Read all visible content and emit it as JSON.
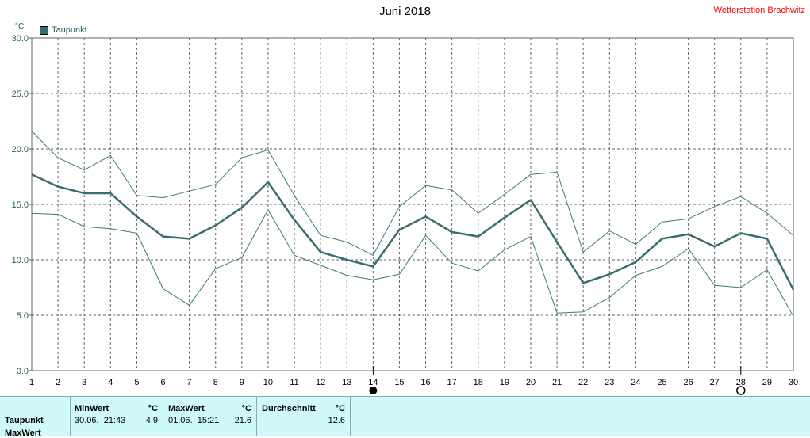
{
  "header": {
    "title": "Juni 2018",
    "station": "Wetterstation Brachwitz",
    "unit": "°C",
    "legend_label": "Taupunkt"
  },
  "chart_data": {
    "type": "line",
    "title": "Juni 2018",
    "ylabel": "°C",
    "xlim": [
      1,
      30
    ],
    "ylim": [
      0,
      30
    ],
    "grid": true,
    "legend": "top-left",
    "x": [
      1,
      2,
      3,
      4,
      5,
      6,
      7,
      8,
      9,
      10,
      11,
      12,
      13,
      14,
      15,
      16,
      17,
      18,
      19,
      20,
      21,
      22,
      23,
      24,
      25,
      26,
      27,
      28,
      29,
      30
    ],
    "x_ticks": [
      "1",
      "2",
      "3",
      "4",
      "5",
      "6",
      "7",
      "8",
      "9",
      "10",
      "11",
      "12",
      "13",
      "14",
      "15",
      "16",
      "17",
      "18",
      "19",
      "20",
      "21",
      "22",
      "23",
      "24",
      "25",
      "26",
      "27",
      "28",
      "29",
      "30"
    ],
    "y_ticks": [
      "0.0",
      "5.0",
      "10.0",
      "15.0",
      "20.0",
      "25.0",
      "30.0"
    ],
    "series": [
      {
        "name": "Taupunkt",
        "role": "mean",
        "color": "#3a6e6e",
        "values": [
          17.7,
          16.6,
          16.0,
          16.0,
          13.9,
          12.1,
          11.9,
          13.1,
          14.7,
          17.0,
          13.6,
          10.7,
          10.0,
          9.4,
          12.7,
          13.9,
          12.5,
          12.1,
          13.8,
          15.4,
          11.6,
          7.9,
          8.7,
          9.8,
          11.9,
          12.3,
          11.2,
          12.4,
          11.9,
          7.3
        ]
      },
      {
        "role": "max",
        "color": "#3a7a7a",
        "values": [
          21.6,
          19.2,
          18.1,
          19.4,
          15.8,
          15.6,
          16.2,
          16.8,
          19.2,
          19.9,
          15.8,
          12.2,
          11.6,
          10.4,
          14.8,
          16.7,
          16.3,
          14.2,
          15.9,
          17.7,
          17.9,
          10.7,
          12.6,
          11.4,
          13.4,
          13.7,
          14.8,
          15.7,
          14.2,
          12.2
        ]
      },
      {
        "role": "min",
        "color": "#3a7a7a",
        "values": [
          14.2,
          14.1,
          13.0,
          12.8,
          12.4,
          7.4,
          5.9,
          9.2,
          10.2,
          14.5,
          10.4,
          9.5,
          8.6,
          8.2,
          8.7,
          12.2,
          9.7,
          9.0,
          10.9,
          12.1,
          5.2,
          5.3,
          6.6,
          8.6,
          9.4,
          11.0,
          7.7,
          7.5,
          9.1,
          4.9
        ]
      }
    ],
    "markers": [
      {
        "x": 14,
        "symbol": "filled-circle",
        "color": "#000000"
      },
      {
        "x": 28,
        "symbol": "open-circle",
        "color": "#000000"
      }
    ]
  },
  "stats": {
    "row_label_1": "Taupunkt",
    "row_label_2": "MaxWert",
    "min": {
      "header": "MinWert",
      "unit": "°C",
      "datetime": "30.06.  21:43",
      "value": "4.9"
    },
    "max": {
      "header": "MaxWert",
      "unit": "°C",
      "datetime": "01.06.  15:21",
      "value": "21.6"
    },
    "avg": {
      "header": "Durchschnitt",
      "unit": "°C",
      "value": "12.6"
    }
  }
}
